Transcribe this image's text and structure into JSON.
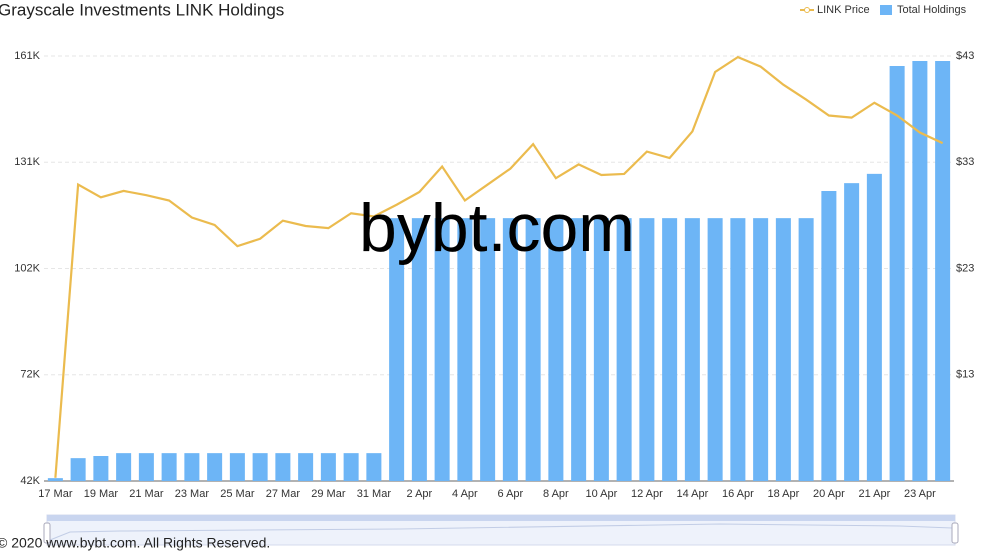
{
  "chart_data": {
    "type": "bar",
    "title": "Grayscale Investments LINK Holdings",
    "watermark": "bybt.com",
    "footer": "© 2020 www.bybt.com. All Rights Reserved.",
    "categories": [
      "17 Mar",
      null,
      "19 Mar",
      null,
      "21 Mar",
      null,
      "23 Mar",
      null,
      "25 Mar",
      null,
      "27 Mar",
      null,
      "29 Mar",
      null,
      "31 Mar",
      null,
      "2 Apr",
      null,
      "4 Apr",
      null,
      "6 Apr",
      null,
      "8 Apr",
      null,
      "10 Apr",
      null,
      "12 Apr",
      null,
      "14 Apr",
      null,
      "16 Apr",
      null,
      "18 Apr",
      null,
      "20 Apr",
      null,
      "21 Apr",
      null,
      "23 Apr",
      null
    ],
    "series": [
      {
        "name": "LINK Price",
        "type": "line",
        "axis": "y2",
        "color": "#ebbb4e",
        "values": [
          3.3,
          30.9,
          29.7,
          30.3,
          29.9,
          29.4,
          27.8,
          27.1,
          25.1,
          25.8,
          27.5,
          27.0,
          26.8,
          28.2,
          27.9,
          29.0,
          30.2,
          32.6,
          29.4,
          30.9,
          32.4,
          34.7,
          31.5,
          32.8,
          31.8,
          31.9,
          34.0,
          33.4,
          35.9,
          41.5,
          42.9,
          42.0,
          40.3,
          38.9,
          37.4,
          37.2,
          38.6,
          37.4,
          35.8,
          34.8
        ]
      },
      {
        "name": "Total Holdings",
        "type": "bar",
        "color": "#6db5f6",
        "values": [
          42800,
          48400,
          49000,
          49800,
          49800,
          49800,
          49800,
          49800,
          49800,
          49800,
          49800,
          49800,
          49800,
          49800,
          49800,
          115600,
          115600,
          115600,
          115600,
          115600,
          115600,
          115600,
          115600,
          115600,
          115600,
          115600,
          115600,
          115600,
          115600,
          115600,
          115600,
          115600,
          115600,
          115600,
          123200,
          125400,
          128000,
          158200,
          159600,
          159600
        ]
      }
    ],
    "ylim": [
      42000,
      161000
    ],
    "yticks": [
      {
        "value": 42000,
        "label": "42K"
      },
      {
        "value": 71750,
        "label": "72K"
      },
      {
        "value": 101500,
        "label": "102K"
      },
      {
        "value": 131250,
        "label": "131K"
      },
      {
        "value": 161000,
        "label": "161K"
      }
    ],
    "y2lim": [
      3,
      43
    ],
    "y2ticks": [
      {
        "value": 13,
        "label": "$13"
      },
      {
        "value": 23,
        "label": "$23"
      },
      {
        "value": 33,
        "label": "$33"
      },
      {
        "value": 43,
        "label": "$43"
      }
    ],
    "grid": true
  }
}
